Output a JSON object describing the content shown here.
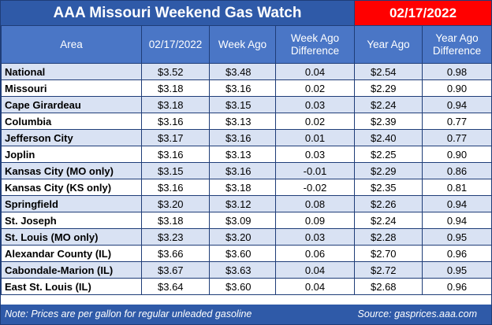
{
  "header": {
    "title": "AAA Missouri Weekend Gas Watch",
    "date": "02/17/2022"
  },
  "columns": [
    "Area",
    "02/17/2022",
    "Week Ago",
    "Week Ago Difference",
    "Year Ago",
    "Year Ago Difference"
  ],
  "rows": [
    {
      "area": "National",
      "current": "$3.52",
      "week_ago": "$3.48",
      "week_diff": "0.04",
      "year_ago": "$2.54",
      "year_diff": "0.98"
    },
    {
      "area": "Missouri",
      "current": "$3.18",
      "week_ago": "$3.16",
      "week_diff": "0.02",
      "year_ago": "$2.29",
      "year_diff": "0.90"
    },
    {
      "area": "Cape Girardeau",
      "current": "$3.18",
      "week_ago": "$3.15",
      "week_diff": "0.03",
      "year_ago": "$2.24",
      "year_diff": "0.94"
    },
    {
      "area": "Columbia",
      "current": "$3.16",
      "week_ago": "$3.13",
      "week_diff": "0.02",
      "year_ago": "$2.39",
      "year_diff": "0.77"
    },
    {
      "area": "Jefferson City",
      "current": "$3.17",
      "week_ago": "$3.16",
      "week_diff": "0.01",
      "year_ago": "$2.40",
      "year_diff": "0.77"
    },
    {
      "area": "Joplin",
      "current": "$3.16",
      "week_ago": "$3.13",
      "week_diff": "0.03",
      "year_ago": "$2.25",
      "year_diff": "0.90"
    },
    {
      "area": "Kansas City (MO only)",
      "current": "$3.15",
      "week_ago": "$3.16",
      "week_diff": "-0.01",
      "year_ago": "$2.29",
      "year_diff": "0.86"
    },
    {
      "area": "Kansas City (KS only)",
      "current": "$3.16",
      "week_ago": "$3.18",
      "week_diff": "-0.02",
      "year_ago": "$2.35",
      "year_diff": "0.81"
    },
    {
      "area": "Springfield",
      "current": "$3.20",
      "week_ago": "$3.12",
      "week_diff": "0.08",
      "year_ago": "$2.26",
      "year_diff": "0.94"
    },
    {
      "area": "St. Joseph",
      "current": "$3.18",
      "week_ago": "$3.09",
      "week_diff": "0.09",
      "year_ago": "$2.24",
      "year_diff": "0.94"
    },
    {
      "area": "St. Louis (MO only)",
      "current": "$3.23",
      "week_ago": "$3.20",
      "week_diff": "0.03",
      "year_ago": "$2.28",
      "year_diff": "0.95"
    },
    {
      "area": "Alexandar County (IL)",
      "current": "$3.66",
      "week_ago": "$3.60",
      "week_diff": "0.06",
      "year_ago": "$2.70",
      "year_diff": "0.96"
    },
    {
      "area": "Cabondale-Marion (IL)",
      "current": "$3.67",
      "week_ago": "$3.63",
      "week_diff": "0.04",
      "year_ago": "$2.72",
      "year_diff": "0.95"
    },
    {
      "area": "East St. Louis (IL)",
      "current": "$3.64",
      "week_ago": "$3.60",
      "week_diff": "0.04",
      "year_ago": "$2.68",
      "year_diff": "0.96"
    }
  ],
  "footer": {
    "note": "Note: Prices are per gallon for regular unleaded gasoline",
    "source": "Source: gasprices.aaa.com"
  },
  "colors": {
    "title_bar": "#2f5aa8",
    "header_row": "#4a76c6",
    "date_box": "#ff0000",
    "stripe": "#d9e2f3"
  }
}
